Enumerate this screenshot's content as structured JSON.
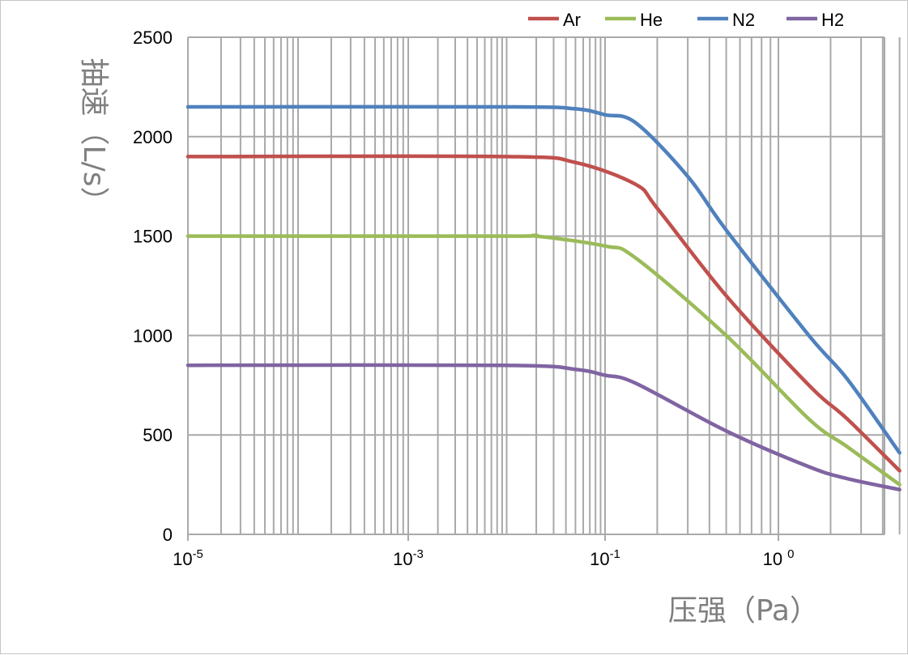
{
  "chart_data": {
    "type": "line",
    "xscale": "log",
    "xlim": [
      1e-05,
      5
    ],
    "ylim": [
      0,
      2500
    ],
    "xlabel": "压强（Pa）",
    "ylabel": "抽速（L/s）",
    "yticks": [
      "0",
      "500",
      "1000",
      "1500",
      "2000",
      "2500"
    ],
    "xticks": [
      {
        "base": "10",
        "exp": "-5"
      },
      {
        "base": "10",
        "exp": "-3"
      },
      {
        "base": "10",
        "exp": "-1"
      },
      {
        "base": "10",
        "exp": "0"
      }
    ],
    "grid": true,
    "legend_position": "top-right",
    "series": [
      {
        "name": "Ar",
        "color": "#c0504d",
        "x": [
          1e-05,
          0.01,
          0.05,
          0.15,
          0.2,
          0.5,
          1.5,
          2.5,
          5
        ],
        "y": [
          1900,
          1900,
          1870,
          1760,
          1640,
          1200,
          750,
          580,
          320
        ]
      },
      {
        "name": "He",
        "color": "#9bbb59",
        "x": [
          1e-05,
          0.01,
          0.02,
          0.1,
          0.15,
          0.5,
          1.5,
          2.5,
          5
        ],
        "y": [
          1500,
          1500,
          1500,
          1450,
          1390,
          1000,
          580,
          440,
          250
        ]
      },
      {
        "name": "N2",
        "color": "#4f81bd",
        "x": [
          1e-05,
          0.01,
          0.05,
          0.1,
          0.15,
          0.3,
          0.5,
          1.5,
          2.5,
          5
        ],
        "y": [
          2150,
          2150,
          2140,
          2110,
          2070,
          1800,
          1530,
          1000,
          780,
          410
        ]
      },
      {
        "name": "H2",
        "color": "#8064a2",
        "x": [
          1e-05,
          0.01,
          0.05,
          0.1,
          0.15,
          0.5,
          1.5,
          2.5,
          5
        ],
        "y": [
          850,
          850,
          830,
          800,
          760,
          520,
          340,
          280,
          225
        ]
      }
    ]
  }
}
